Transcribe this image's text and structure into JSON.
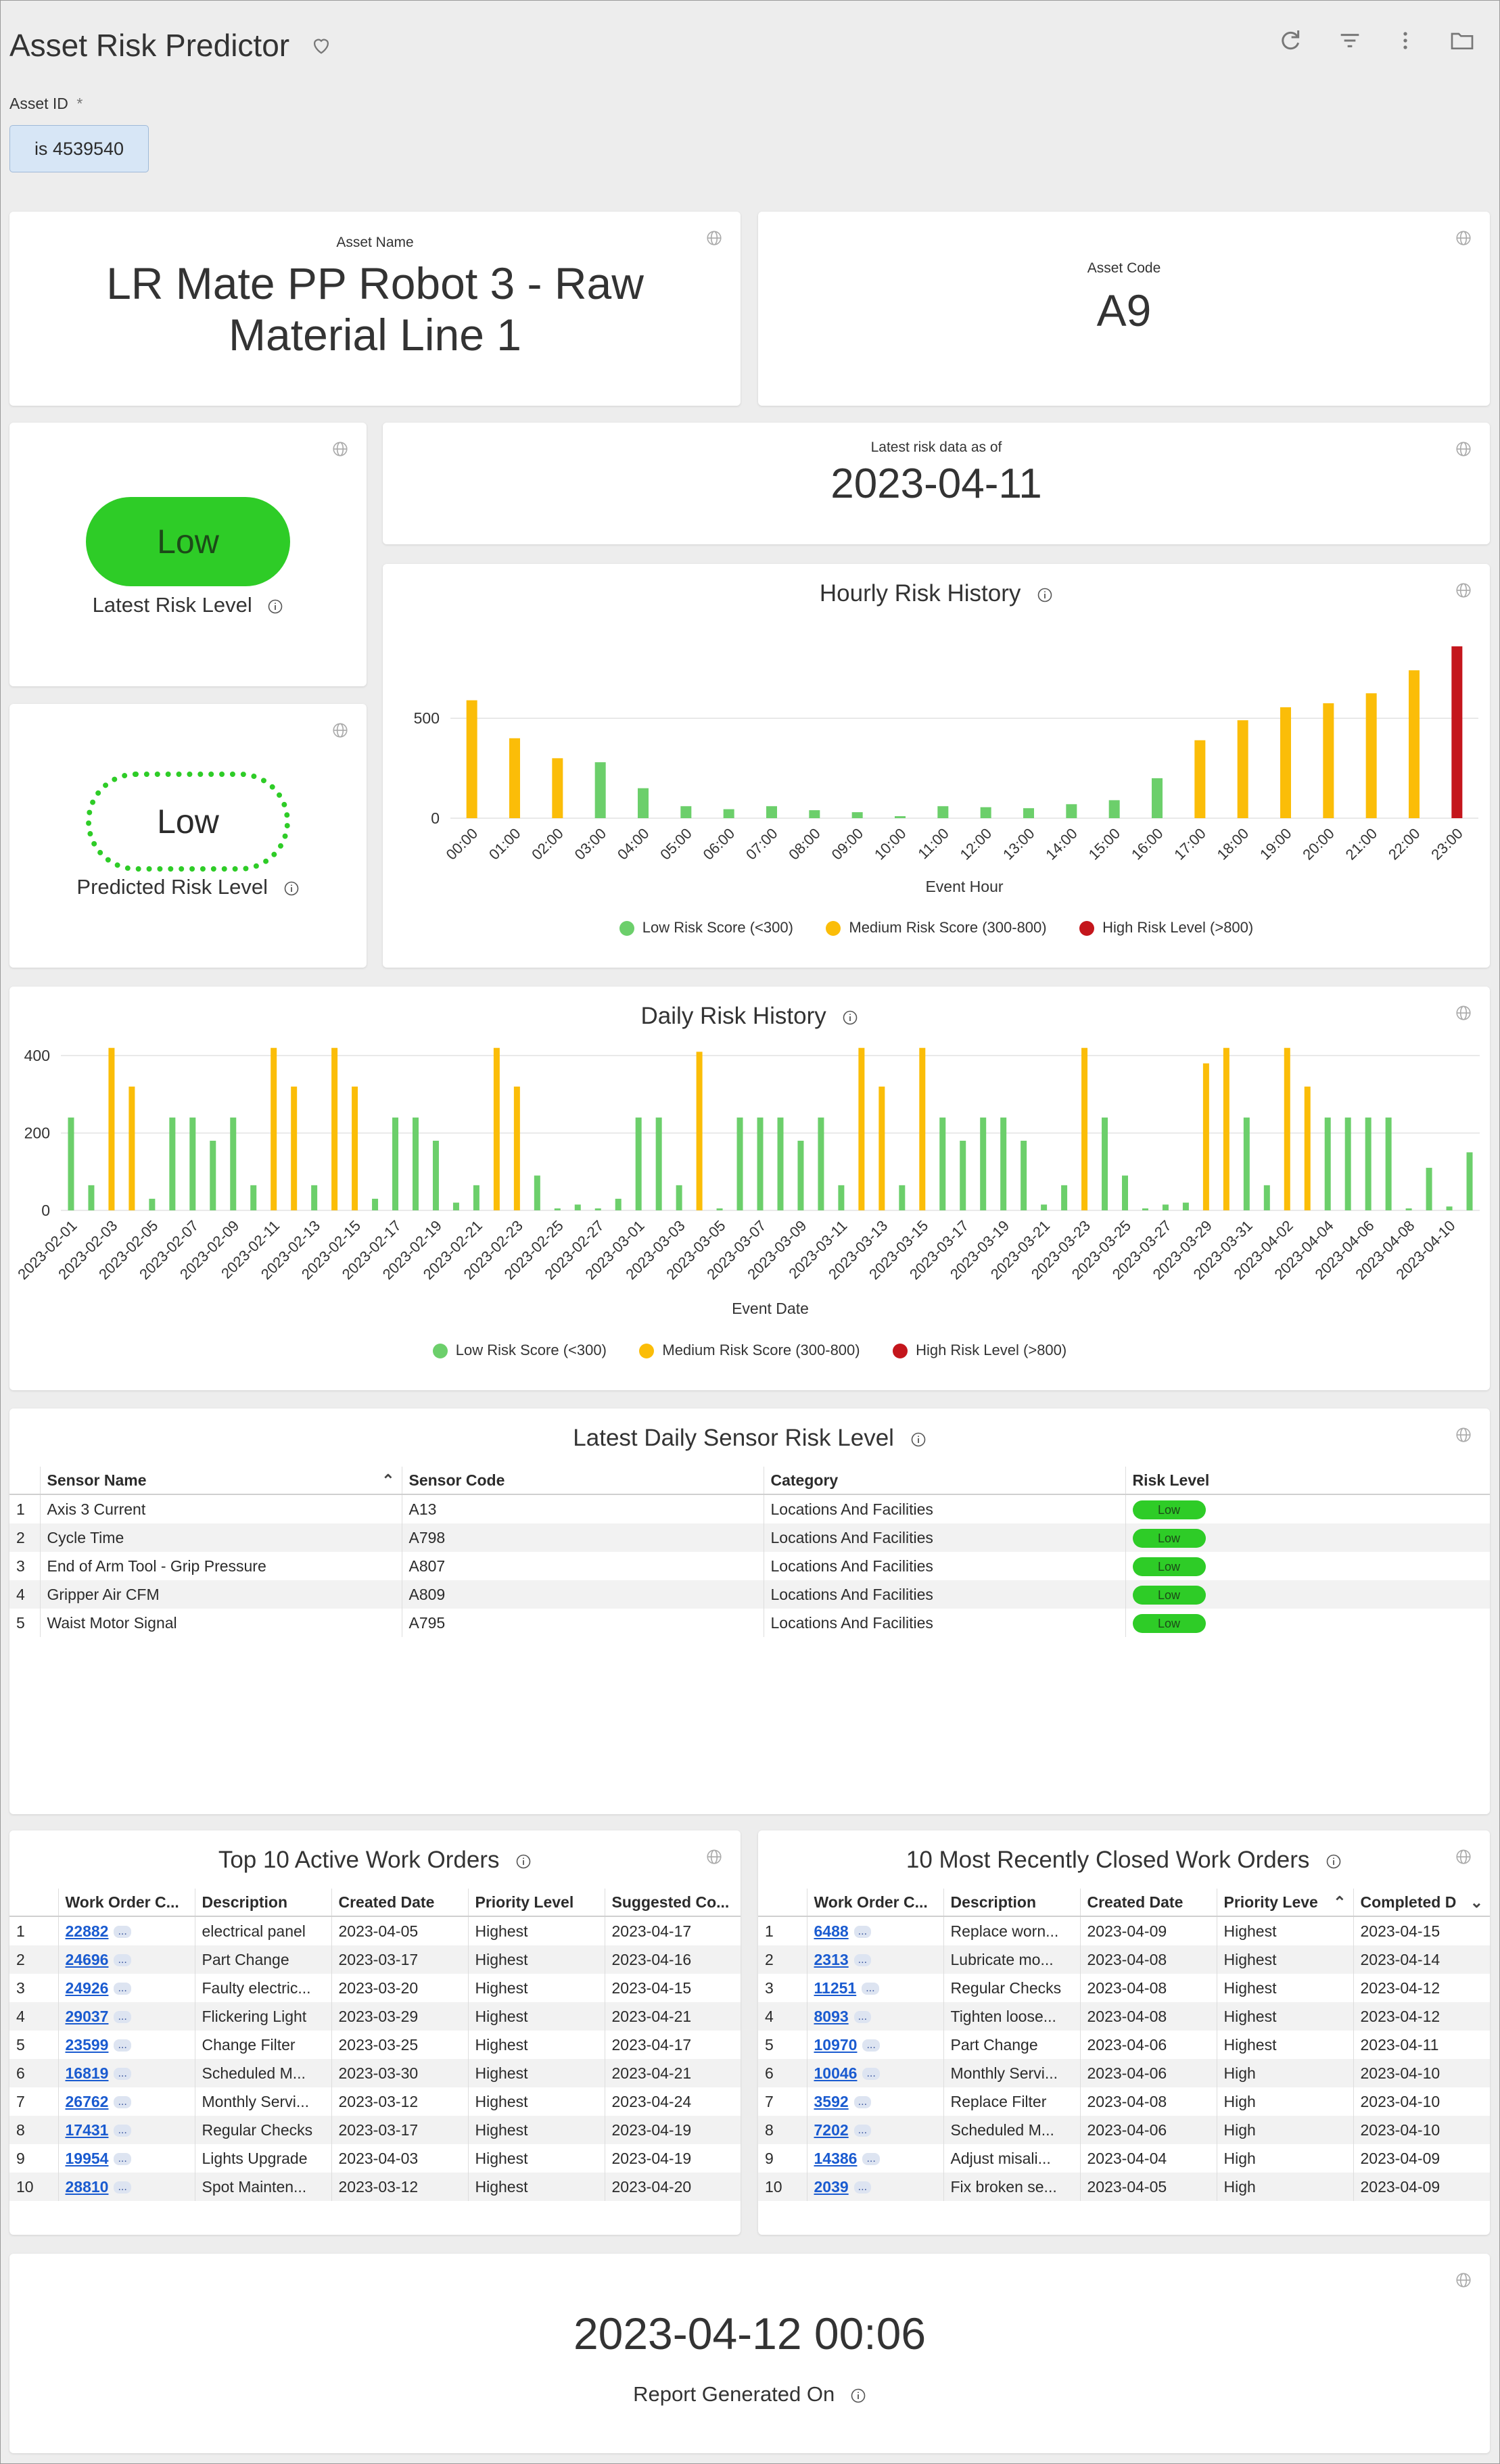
{
  "header": {
    "title": "Asset Risk Predictor",
    "filter_label": "Asset ID",
    "required_mark": "*",
    "filter_value": "is 4539540"
  },
  "asset_name": {
    "label": "Asset Name",
    "value": "LR Mate PP Robot 3 - Raw Material Line 1"
  },
  "asset_code": {
    "label": "Asset Code",
    "value": "A9"
  },
  "latest_risk": {
    "badge": "Low",
    "label": "Latest Risk Level"
  },
  "predicted_risk": {
    "badge": "Low",
    "label": "Predicted Risk Level"
  },
  "latest_date": {
    "label": "Latest risk data as of",
    "value": "2023-04-11"
  },
  "colors": {
    "low": "#6ccf6b",
    "medium": "#fbbd08",
    "high": "#c4161c",
    "badge": "#2ecc27",
    "link": "#1a5bd0"
  },
  "legend": {
    "low": "Low Risk Score (<300)",
    "medium": "Medium Risk Score (300-800)",
    "high": "High Risk Level (>800)"
  },
  "chart_data": [
    {
      "type": "bar",
      "title": "Hourly Risk History",
      "xlabel": "Event Hour",
      "ylabel": "",
      "ylim": [
        0,
        900
      ],
      "yticks": [
        0,
        500
      ],
      "categories": [
        "00:00",
        "01:00",
        "02:00",
        "03:00",
        "04:00",
        "05:00",
        "06:00",
        "07:00",
        "08:00",
        "09:00",
        "10:00",
        "11:00",
        "12:00",
        "13:00",
        "14:00",
        "15:00",
        "16:00",
        "17:00",
        "18:00",
        "19:00",
        "20:00",
        "21:00",
        "22:00",
        "23:00"
      ],
      "values": [
        590,
        400,
        300,
        280,
        150,
        60,
        45,
        60,
        40,
        30,
        10,
        60,
        55,
        50,
        70,
        90,
        200,
        390,
        490,
        555,
        575,
        625,
        740,
        860
      ],
      "levels": [
        "medium",
        "medium",
        "medium",
        "low",
        "low",
        "low",
        "low",
        "low",
        "low",
        "low",
        "low",
        "low",
        "low",
        "low",
        "low",
        "low",
        "low",
        "medium",
        "medium",
        "medium",
        "medium",
        "medium",
        "medium",
        "high"
      ]
    },
    {
      "type": "bar",
      "title": "Daily Risk History",
      "xlabel": "Event Date",
      "ylabel": "",
      "ylim": [
        0,
        430
      ],
      "yticks": [
        0,
        200,
        400
      ],
      "categories": [
        "2023-02-01",
        "2023-02-02",
        "2023-02-03",
        "2023-02-04",
        "2023-02-05",
        "2023-02-06",
        "2023-02-07",
        "2023-02-08",
        "2023-02-09",
        "2023-02-10",
        "2023-02-11",
        "2023-02-12",
        "2023-02-13",
        "2023-02-14",
        "2023-02-15",
        "2023-02-16",
        "2023-02-17",
        "2023-02-18",
        "2023-02-19",
        "2023-02-20",
        "2023-02-21",
        "2023-02-22",
        "2023-02-23",
        "2023-02-24",
        "2023-02-25",
        "2023-02-26",
        "2023-02-27",
        "2023-02-28",
        "2023-03-01",
        "2023-03-02",
        "2023-03-03",
        "2023-03-04",
        "2023-03-05",
        "2023-03-06",
        "2023-03-07",
        "2023-03-08",
        "2023-03-09",
        "2023-03-10",
        "2023-03-11",
        "2023-03-12",
        "2023-03-13",
        "2023-03-14",
        "2023-03-15",
        "2023-03-16",
        "2023-03-17",
        "2023-03-18",
        "2023-03-19",
        "2023-03-20",
        "2023-03-21",
        "2023-03-22",
        "2023-03-23",
        "2023-03-24",
        "2023-03-25",
        "2023-03-26",
        "2023-03-27",
        "2023-03-28",
        "2023-03-29",
        "2023-03-30",
        "2023-03-31",
        "2023-04-01",
        "2023-04-02",
        "2023-04-03",
        "2023-04-04",
        "2023-04-05",
        "2023-04-06",
        "2023-04-07",
        "2023-04-08",
        "2023-04-09",
        "2023-04-10",
        "2023-04-11"
      ],
      "xticks": [
        "2023-02-01",
        "2023-02-03",
        "2023-02-05",
        "2023-02-07",
        "2023-02-09",
        "2023-02-11",
        "2023-02-13",
        "2023-02-15",
        "2023-02-17",
        "2023-02-19",
        "2023-02-21",
        "2023-02-23",
        "2023-02-25",
        "2023-02-27",
        "2023-03-01",
        "2023-03-03",
        "2023-03-05",
        "2023-03-07",
        "2023-03-09",
        "2023-03-11",
        "2023-03-13",
        "2023-03-15",
        "2023-03-17",
        "2023-03-19",
        "2023-03-21",
        "2023-03-23",
        "2023-03-25",
        "2023-03-27",
        "2023-03-29",
        "2023-03-31",
        "2023-04-02",
        "2023-04-04",
        "2023-04-06",
        "2023-04-08",
        "2023-04-10"
      ],
      "values": [
        240,
        65,
        420,
        320,
        30,
        240,
        240,
        180,
        240,
        65,
        420,
        320,
        65,
        420,
        320,
        30,
        240,
        240,
        180,
        20,
        65,
        420,
        320,
        90,
        5,
        15,
        5,
        30,
        240,
        240,
        65,
        410,
        5,
        240,
        240,
        240,
        180,
        240,
        65,
        420,
        320,
        65,
        420,
        240,
        180,
        240,
        240,
        180,
        15,
        65,
        420,
        240,
        90,
        5,
        15,
        20,
        380,
        420,
        240,
        65,
        420,
        320,
        240,
        240,
        240,
        240,
        5,
        110,
        10,
        150
      ],
      "levels": [
        "low",
        "low",
        "medium",
        "medium",
        "low",
        "low",
        "low",
        "low",
        "low",
        "low",
        "medium",
        "medium",
        "low",
        "medium",
        "medium",
        "low",
        "low",
        "low",
        "low",
        "low",
        "low",
        "medium",
        "medium",
        "low",
        "low",
        "low",
        "low",
        "low",
        "low",
        "low",
        "low",
        "medium",
        "low",
        "low",
        "low",
        "low",
        "low",
        "low",
        "low",
        "medium",
        "medium",
        "low",
        "medium",
        "low",
        "low",
        "low",
        "low",
        "low",
        "low",
        "low",
        "medium",
        "low",
        "low",
        "low",
        "low",
        "low",
        "medium",
        "medium",
        "low",
        "low",
        "medium",
        "medium",
        "low",
        "low",
        "low",
        "low",
        "low",
        "low",
        "low",
        "low"
      ]
    }
  ],
  "sensor_table": {
    "title": "Latest Daily Sensor Risk Level",
    "columns": [
      "Sensor Name",
      "Sensor Code",
      "Category",
      "Risk Level"
    ],
    "rows": [
      {
        "n": "1",
        "name": "Axis 3 Current",
        "code": "A13",
        "category": "Locations And Facilities",
        "risk": "Low"
      },
      {
        "n": "2",
        "name": "Cycle Time",
        "code": "A798",
        "category": "Locations And Facilities",
        "risk": "Low"
      },
      {
        "n": "3",
        "name": "End of Arm Tool - Grip Pressure",
        "code": "A807",
        "category": "Locations And Facilities",
        "risk": "Low"
      },
      {
        "n": "4",
        "name": "Gripper Air CFM",
        "code": "A809",
        "category": "Locations And Facilities",
        "risk": "Low"
      },
      {
        "n": "5",
        "name": "Waist Motor Signal",
        "code": "A795",
        "category": "Locations And Facilities",
        "risk": "Low"
      }
    ]
  },
  "active_orders": {
    "title": "Top 10 Active Work Orders",
    "columns": [
      "Work Order C...",
      "Description",
      "Created Date",
      "Priority Level",
      "Suggested Co..."
    ],
    "rows": [
      {
        "n": "1",
        "id": "22882",
        "desc": "electrical panel",
        "created": "2023-04-05",
        "priority": "Highest",
        "date": "2023-04-17"
      },
      {
        "n": "2",
        "id": "24696",
        "desc": "Part Change",
        "created": "2023-03-17",
        "priority": "Highest",
        "date": "2023-04-16"
      },
      {
        "n": "3",
        "id": "24926",
        "desc": "Faulty electric...",
        "created": "2023-03-20",
        "priority": "Highest",
        "date": "2023-04-15"
      },
      {
        "n": "4",
        "id": "29037",
        "desc": "Flickering Light",
        "created": "2023-03-29",
        "priority": "Highest",
        "date": "2023-04-21"
      },
      {
        "n": "5",
        "id": "23599",
        "desc": "Change Filter",
        "created": "2023-03-25",
        "priority": "Highest",
        "date": "2023-04-17"
      },
      {
        "n": "6",
        "id": "16819",
        "desc": "Scheduled M...",
        "created": "2023-03-30",
        "priority": "Highest",
        "date": "2023-04-21"
      },
      {
        "n": "7",
        "id": "26762",
        "desc": "Monthly Servi...",
        "created": "2023-03-12",
        "priority": "Highest",
        "date": "2023-04-24"
      },
      {
        "n": "8",
        "id": "17431",
        "desc": "Regular Checks",
        "created": "2023-03-17",
        "priority": "Highest",
        "date": "2023-04-19"
      },
      {
        "n": "9",
        "id": "19954",
        "desc": "Lights Upgrade",
        "created": "2023-04-03",
        "priority": "Highest",
        "date": "2023-04-19"
      },
      {
        "n": "10",
        "id": "28810",
        "desc": "Spot Mainten...",
        "created": "2023-03-12",
        "priority": "Highest",
        "date": "2023-04-20"
      }
    ]
  },
  "closed_orders": {
    "title": "10 Most Recently Closed Work Orders",
    "columns": [
      "Work Order C...",
      "Description",
      "Created Date",
      "Priority Leve",
      "Completed D"
    ],
    "rows": [
      {
        "n": "1",
        "id": "6488",
        "desc": "Replace worn...",
        "created": "2023-04-09",
        "priority": "Highest",
        "date": "2023-04-15"
      },
      {
        "n": "2",
        "id": "2313",
        "desc": "Lubricate mo...",
        "created": "2023-04-08",
        "priority": "Highest",
        "date": "2023-04-14"
      },
      {
        "n": "3",
        "id": "11251",
        "desc": "Regular Checks",
        "created": "2023-04-08",
        "priority": "Highest",
        "date": "2023-04-12"
      },
      {
        "n": "4",
        "id": "8093",
        "desc": "Tighten loose...",
        "created": "2023-04-08",
        "priority": "Highest",
        "date": "2023-04-12"
      },
      {
        "n": "5",
        "id": "10970",
        "desc": "Part Change",
        "created": "2023-04-06",
        "priority": "Highest",
        "date": "2023-04-11"
      },
      {
        "n": "6",
        "id": "10046",
        "desc": "Monthly Servi...",
        "created": "2023-04-06",
        "priority": "High",
        "date": "2023-04-10"
      },
      {
        "n": "7",
        "id": "3592",
        "desc": "Replace Filter",
        "created": "2023-04-08",
        "priority": "High",
        "date": "2023-04-10"
      },
      {
        "n": "8",
        "id": "7202",
        "desc": "Scheduled M...",
        "created": "2023-04-06",
        "priority": "High",
        "date": "2023-04-10"
      },
      {
        "n": "9",
        "id": "14386",
        "desc": "Adjust misali...",
        "created": "2023-04-04",
        "priority": "High",
        "date": "2023-04-09"
      },
      {
        "n": "10",
        "id": "2039",
        "desc": "Fix broken se...",
        "created": "2023-04-05",
        "priority": "High",
        "date": "2023-04-09"
      }
    ]
  },
  "report": {
    "value": "2023-04-12 00:06",
    "label": "Report Generated On"
  },
  "more_label": "..."
}
